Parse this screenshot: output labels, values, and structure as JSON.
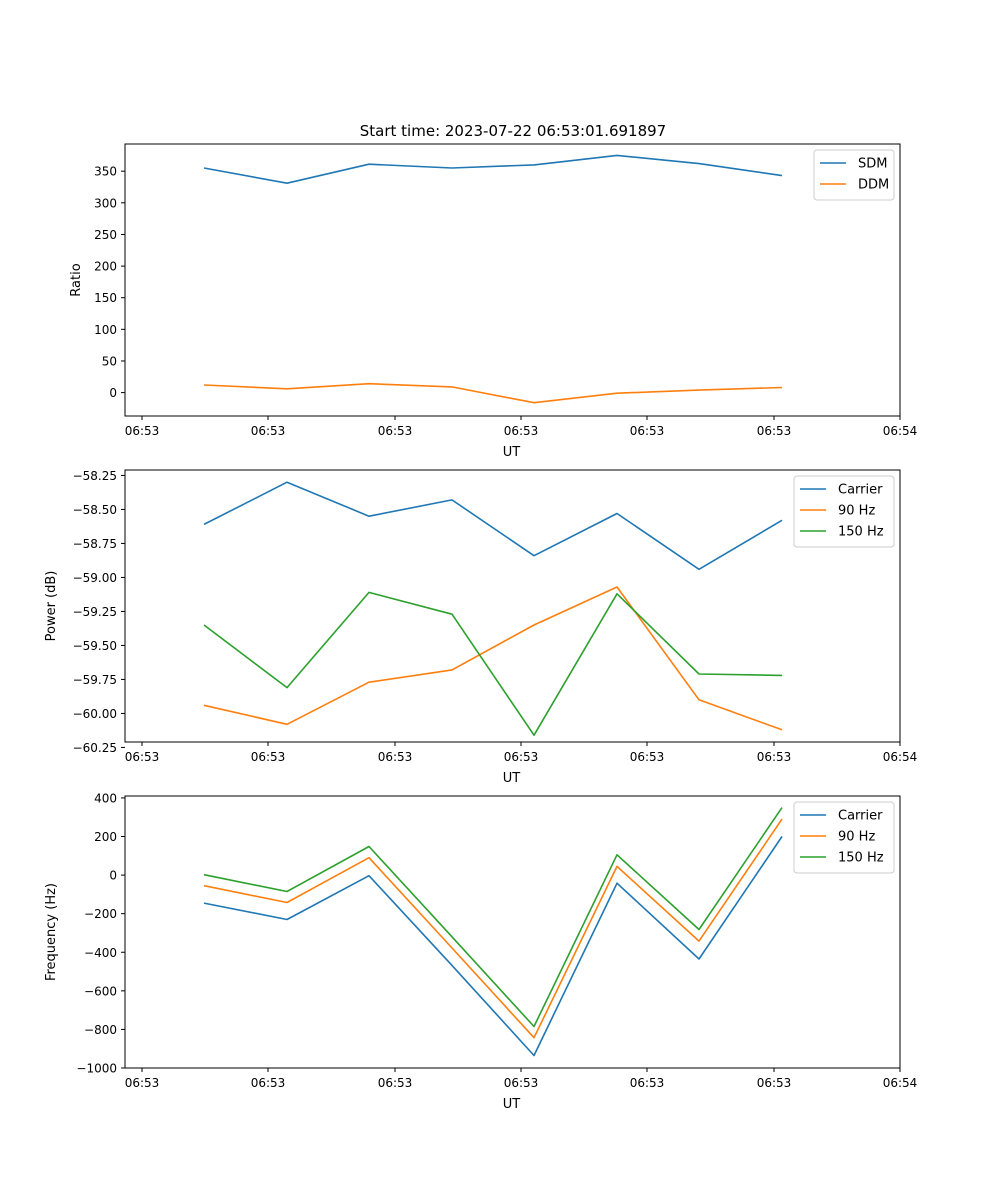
{
  "figure": {
    "title": "Start time: 2023-07-22 06:53:01.691897"
  },
  "chart_data": [
    {
      "type": "line",
      "title": "Start time: 2023-07-22 06:53:01.691897",
      "xlabel": "UT",
      "ylabel": "Ratio",
      "xticks": [
        "06:53",
        "06:53",
        "06:53",
        "06:53",
        "06:53",
        "06:53",
        "06:54"
      ],
      "yticks": [
        "0",
        "50",
        "100",
        "150",
        "200",
        "250",
        "300",
        "350"
      ],
      "ylim": [
        -37,
        393
      ],
      "ytick_values": [
        0,
        50,
        100,
        150,
        200,
        250,
        300,
        350
      ],
      "legend_position": "top-right",
      "series": [
        {
          "name": "SDM",
          "color": "#1f77b4",
          "values": [
            355,
            331,
            361,
            355,
            360,
            375,
            362,
            343
          ]
        },
        {
          "name": "DDM",
          "color": "#ff7f0e",
          "values": [
            12,
            6,
            14,
            9,
            -16,
            -1,
            4,
            8
          ]
        }
      ]
    },
    {
      "type": "line",
      "title": "",
      "xlabel": "UT",
      "ylabel": "Power (dB)",
      "xticks": [
        "06:53",
        "06:53",
        "06:53",
        "06:53",
        "06:53",
        "06:53",
        "06:54"
      ],
      "yticks": [
        "−58.25",
        "−58.50",
        "−58.75",
        "−59.00",
        "−59.25",
        "−59.50",
        "−59.75",
        "−60.00",
        "−60.25"
      ],
      "ylim": [
        -60.21,
        -58.21
      ],
      "ytick_values": [
        -58.25,
        -58.5,
        -58.75,
        -59.0,
        -59.25,
        -59.5,
        -59.75,
        -60.0,
        -60.25
      ],
      "legend_position": "top-right",
      "series": [
        {
          "name": "Carrier",
          "color": "#1f77b4",
          "values": [
            -58.61,
            -58.3,
            -58.55,
            -58.43,
            -58.84,
            -58.53,
            -58.94,
            -58.58
          ]
        },
        {
          "name": "90 Hz",
          "color": "#ff7f0e",
          "values": [
            -59.94,
            -60.08,
            -59.77,
            -59.68,
            -59.35,
            -59.07,
            -59.9,
            -60.12
          ]
        },
        {
          "name": "150 Hz",
          "color": "#2ca02c",
          "values": [
            -59.35,
            -59.81,
            -59.11,
            -59.27,
            -60.16,
            -59.12,
            -59.71,
            -59.72
          ]
        }
      ]
    },
    {
      "type": "line",
      "title": "",
      "xlabel": "UT",
      "ylabel": "Frequency (Hz)",
      "xticks": [
        "06:53",
        "06:53",
        "06:53",
        "06:53",
        "06:53",
        "06:53",
        "06:54"
      ],
      "yticks": [
        "400",
        "200",
        "0",
        "−200",
        "−400",
        "−600",
        "−800",
        "−1000"
      ],
      "ylim": [
        -1000,
        410
      ],
      "ytick_values": [
        400,
        200,
        0,
        -200,
        -400,
        -600,
        -800,
        -1000
      ],
      "legend_position": "top-right",
      "series": [
        {
          "name": "Carrier",
          "color": "#1f77b4",
          "values": [
            -145,
            -230,
            -3,
            -468,
            -935,
            -42,
            -435,
            200
          ]
        },
        {
          "name": "90 Hz",
          "color": "#ff7f0e",
          "values": [
            -55,
            -142,
            90,
            -378,
            -843,
            45,
            -342,
            290
          ]
        },
        {
          "name": "150 Hz",
          "color": "#2ca02c",
          "values": [
            2,
            -85,
            148,
            -320,
            -785,
            105,
            -282,
            350
          ]
        }
      ]
    }
  ]
}
